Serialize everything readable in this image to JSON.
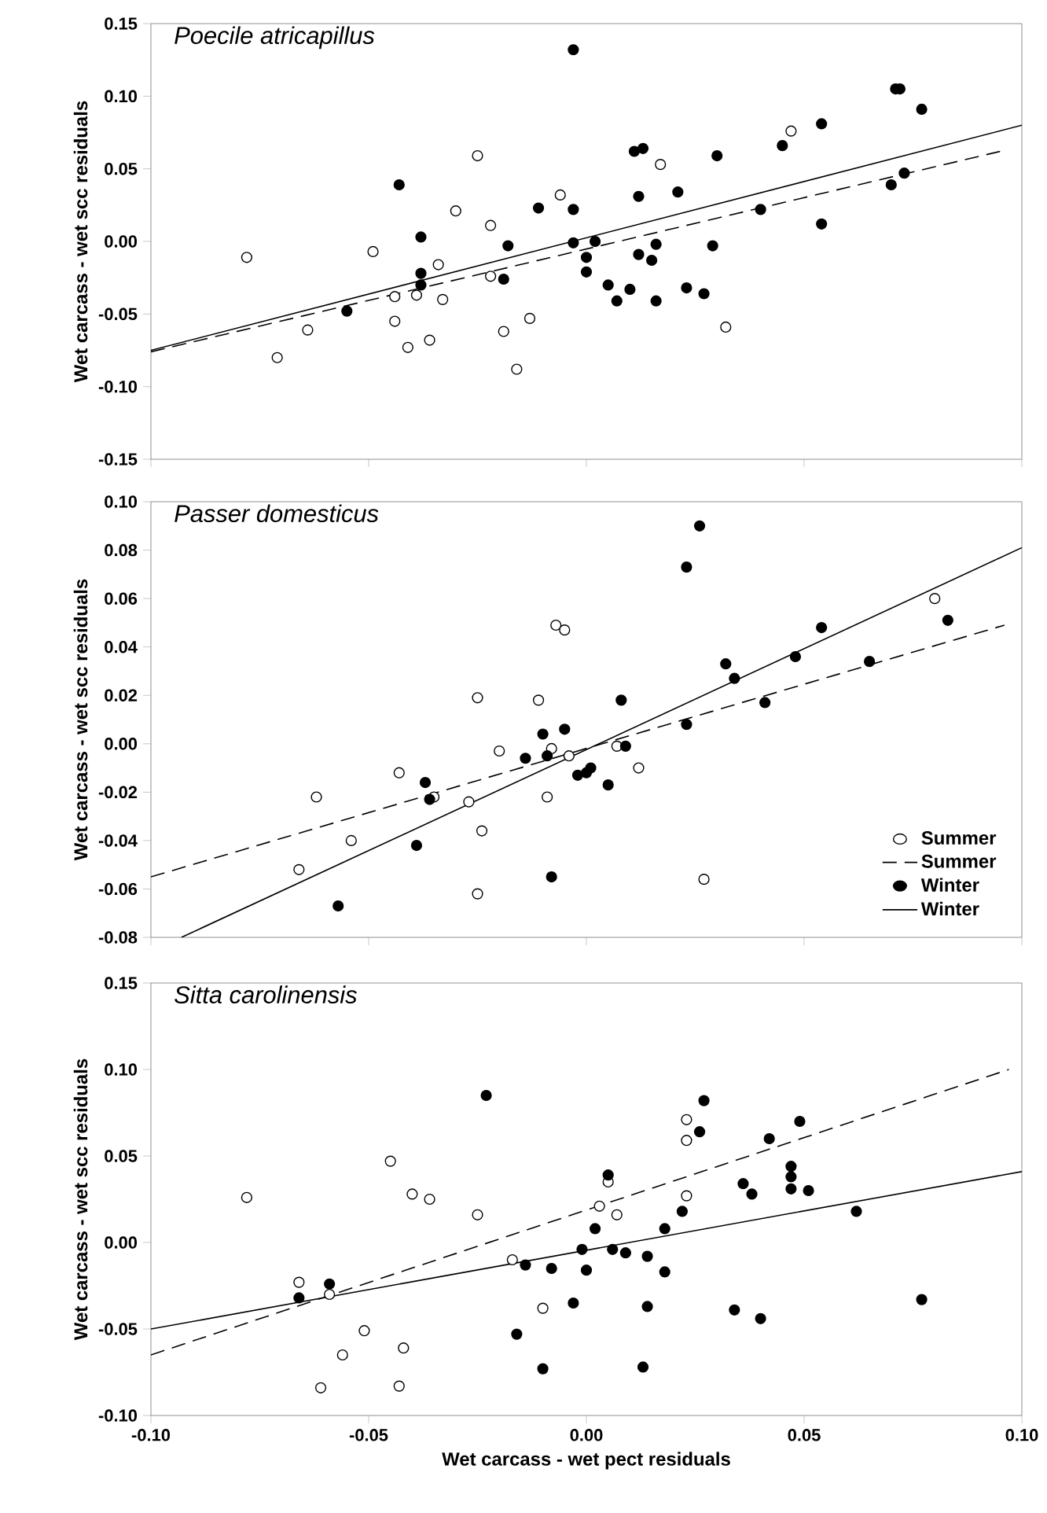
{
  "chart_data": [
    {
      "type": "scatter",
      "title": "Poecile atricapillus",
      "ylabel": "Wet carcass - wet scc residuals",
      "tick_labels": "y",
      "xlim": [
        -0.1,
        0.1
      ],
      "ylim": [
        -0.15,
        0.15
      ],
      "xticks": [
        {
          "value": -0.1,
          "label": null
        },
        {
          "value": -0.05,
          "label": null
        },
        {
          "value": 0,
          "label": null
        },
        {
          "value": 0.05,
          "label": null
        },
        {
          "value": 0.1,
          "label": null
        }
      ],
      "yticks": [
        {
          "value": -0.15,
          "label": "-0.15"
        },
        {
          "value": -0.1,
          "label": "-0.10"
        },
        {
          "value": -0.05,
          "label": "-0.05"
        },
        {
          "value": 0,
          "label": "0.00"
        },
        {
          "value": 0.05,
          "label": "0.05"
        },
        {
          "value": 0.1,
          "label": "0.10"
        },
        {
          "value": 0.15,
          "label": "0.15"
        }
      ],
      "series": [
        {
          "type": "scatter",
          "marker": "circle",
          "color": "#ffffff",
          "x": [
            -0.078,
            -0.071,
            -0.064,
            -0.049,
            -0.044,
            -0.044,
            -0.041,
            -0.039,
            -0.036,
            -0.034,
            -0.033,
            -0.03,
            -0.025,
            -0.022,
            -0.022,
            -0.019,
            -0.016,
            -0.013,
            -0.006,
            0.017,
            0.047,
            0.032
          ],
          "values": [
            -0.011,
            -0.08,
            -0.061,
            -0.007,
            -0.038,
            -0.055,
            -0.073,
            -0.037,
            -0.068,
            -0.016,
            -0.04,
            0.021,
            0.059,
            0.011,
            -0.024,
            -0.062,
            -0.088,
            -0.053,
            0.032,
            0.053,
            0.076,
            -0.059
          ]
        },
        {
          "type": "line",
          "marker": "none",
          "line_style": "dashed",
          "color": "#000000",
          "x": [
            -0.1,
            0.095
          ],
          "values": [
            -0.076,
            0.062
          ]
        },
        {
          "type": "scatter",
          "marker": "circle",
          "color": "#000000",
          "x": [
            -0.055,
            -0.043,
            -0.038,
            -0.038,
            -0.038,
            -0.018,
            -0.019,
            -0.011,
            -0.003,
            -0.003,
            -0.003,
            0.0,
            0.0,
            0.002,
            0.011,
            0.013,
            0.012,
            0.021,
            0.03,
            0.005,
            0.007,
            0.01,
            0.012,
            0.015,
            0.016,
            0.016,
            0.023,
            0.027,
            0.029,
            0.04,
            0.045,
            0.054,
            0.054,
            0.071,
            0.072,
            0.077,
            0.07,
            0.073
          ],
          "values": [
            -0.048,
            0.039,
            0.003,
            -0.022,
            -0.03,
            -0.003,
            -0.026,
            0.023,
            0.132,
            0.022,
            -0.001,
            -0.011,
            -0.021,
            0.0,
            0.062,
            0.064,
            0.031,
            0.034,
            0.059,
            -0.03,
            -0.041,
            -0.033,
            -0.009,
            -0.013,
            -0.002,
            -0.041,
            -0.032,
            -0.036,
            -0.003,
            0.022,
            0.066,
            0.081,
            0.012,
            0.105,
            0.105,
            0.091,
            0.039,
            0.047
          ]
        },
        {
          "type": "line",
          "marker": "none",
          "line_style": "solid",
          "color": "#000000",
          "x": [
            -0.1,
            0.1
          ],
          "values": [
            -0.075,
            0.08
          ]
        }
      ]
    },
    {
      "type": "scatter",
      "title": "Passer domesticus",
      "ylabel": "Wet carcass - wet scc residuals",
      "tick_labels": "y",
      "legend": "bottom right",
      "xlim": [
        -0.1,
        0.1
      ],
      "ylim": [
        -0.08,
        0.1
      ],
      "xticks": [
        {
          "value": -0.1,
          "label": null
        },
        {
          "value": -0.05,
          "label": null
        },
        {
          "value": 0,
          "label": null
        },
        {
          "value": 0.05,
          "label": null
        },
        {
          "value": 0.1,
          "label": null
        }
      ],
      "yticks": [
        {
          "value": -0.08,
          "label": "-0.08"
        },
        {
          "value": -0.06,
          "label": "-0.06"
        },
        {
          "value": -0.04,
          "label": "-0.04"
        },
        {
          "value": -0.02,
          "label": "-0.02"
        },
        {
          "value": 0,
          "label": "0.00"
        },
        {
          "value": 0.02,
          "label": "0.02"
        },
        {
          "value": 0.04,
          "label": "0.04"
        },
        {
          "value": 0.06,
          "label": "0.06"
        },
        {
          "value": 0.08,
          "label": "0.08"
        },
        {
          "value": 0.1,
          "label": "0.10"
        }
      ],
      "series": [
        {
          "name": "Summer",
          "type": "scatter",
          "marker": "circle",
          "color": "#ffffff",
          "x": [
            -0.066,
            -0.062,
            -0.054,
            -0.043,
            -0.035,
            -0.027,
            -0.025,
            -0.025,
            -0.024,
            -0.02,
            -0.011,
            -0.009,
            -0.008,
            -0.007,
            -0.005,
            -0.004,
            0.007,
            0.012,
            0.027,
            0.08
          ],
          "values": [
            -0.052,
            -0.022,
            -0.04,
            -0.012,
            -0.022,
            -0.024,
            0.019,
            -0.062,
            -0.036,
            -0.003,
            0.018,
            -0.022,
            -0.002,
            0.049,
            0.047,
            -0.005,
            -0.001,
            -0.01,
            -0.056,
            0.06
          ]
        },
        {
          "name": "Summer",
          "type": "line",
          "marker": "none",
          "line_style": "dashed",
          "color": "#000000",
          "x": [
            -0.1,
            0.096
          ],
          "values": [
            -0.055,
            0.049
          ]
        },
        {
          "name": "Winter",
          "type": "scatter",
          "marker": "circle",
          "color": "#000000",
          "x": [
            -0.057,
            -0.039,
            -0.037,
            -0.036,
            -0.014,
            -0.01,
            -0.009,
            -0.005,
            -0.008,
            -0.002,
            0.0,
            0.001,
            0.005,
            0.008,
            0.009,
            0.023,
            0.023,
            0.026,
            0.032,
            0.034,
            0.041,
            0.048,
            0.054,
            0.065,
            0.083
          ],
          "values": [
            -0.067,
            -0.042,
            -0.016,
            -0.023,
            -0.006,
            0.004,
            -0.005,
            0.006,
            -0.055,
            -0.013,
            -0.012,
            -0.01,
            -0.017,
            0.018,
            -0.001,
            0.008,
            0.073,
            0.09,
            0.033,
            0.027,
            0.017,
            0.036,
            0.048,
            0.034,
            0.051
          ]
        },
        {
          "name": "Winter",
          "type": "line",
          "marker": "none",
          "line_style": "solid",
          "color": "#000000",
          "x": [
            -0.093,
            0.1
          ],
          "values": [
            -0.08,
            0.081
          ]
        }
      ]
    },
    {
      "type": "scatter",
      "title": "Sitta carolinensis",
      "xlabel": "Wet carcass - wet pect residuals",
      "ylabel": "Wet carcass - wet scc residuals",
      "xlim": [
        -0.1,
        0.1
      ],
      "ylim": [
        -0.1,
        0.15
      ],
      "xticks": [
        {
          "value": -0.1,
          "label": "-0.10"
        },
        {
          "value": -0.05,
          "label": "-0.05"
        },
        {
          "value": 0,
          "label": "0.00"
        },
        {
          "value": 0.05,
          "label": "0.05"
        },
        {
          "value": 0.1,
          "label": "0.10"
        }
      ],
      "yticks": [
        {
          "value": -0.1,
          "label": "-0.10"
        },
        {
          "value": -0.05,
          "label": "-0.05"
        },
        {
          "value": 0,
          "label": "0.00"
        },
        {
          "value": 0.05,
          "label": "0.05"
        },
        {
          "value": 0.1,
          "label": "0.10"
        },
        {
          "value": 0.15,
          "label": "0.15"
        }
      ],
      "series": [
        {
          "type": "scatter",
          "marker": "circle",
          "color": "#ffffff",
          "x": [
            -0.078,
            -0.066,
            -0.059,
            -0.061,
            -0.056,
            -0.051,
            -0.045,
            -0.043,
            -0.042,
            -0.04,
            -0.036,
            -0.025,
            -0.017,
            -0.01,
            0.003,
            0.005,
            0.007,
            0.023,
            0.023,
            0.023
          ],
          "values": [
            0.026,
            -0.023,
            -0.03,
            -0.084,
            -0.065,
            -0.051,
            0.047,
            -0.083,
            -0.061,
            0.028,
            0.025,
            0.016,
            -0.01,
            -0.038,
            0.021,
            0.035,
            0.016,
            0.071,
            0.059,
            0.027
          ]
        },
        {
          "type": "line",
          "marker": "none",
          "line_style": "dashed",
          "color": "#000000",
          "x": [
            -0.1,
            0.097
          ],
          "values": [
            -0.065,
            0.1
          ]
        },
        {
          "type": "scatter",
          "marker": "circle",
          "color": "#000000",
          "x": [
            -0.066,
            -0.059,
            -0.023,
            -0.016,
            -0.014,
            -0.008,
            -0.01,
            -0.003,
            -0.001,
            0.0,
            0.002,
            0.005,
            0.006,
            0.009,
            0.014,
            0.018,
            0.014,
            0.013,
            0.018,
            0.022,
            0.026,
            0.027,
            0.034,
            0.04,
            0.036,
            0.038,
            0.042,
            0.047,
            0.047,
            0.047,
            0.049,
            0.051,
            0.062,
            0.077
          ],
          "values": [
            -0.032,
            -0.024,
            0.085,
            -0.053,
            -0.013,
            -0.015,
            -0.073,
            -0.035,
            -0.004,
            -0.016,
            0.008,
            0.039,
            -0.004,
            -0.006,
            -0.008,
            -0.017,
            -0.037,
            -0.072,
            0.008,
            0.018,
            0.064,
            0.082,
            -0.039,
            -0.044,
            0.034,
            0.028,
            0.06,
            0.044,
            0.038,
            0.031,
            0.07,
            0.03,
            0.018,
            -0.033
          ]
        },
        {
          "type": "line",
          "marker": "none",
          "line_style": "solid",
          "color": "#000000",
          "x": [
            -0.1,
            0.1
          ],
          "values": [
            -0.05,
            0.041
          ]
        }
      ]
    }
  ]
}
